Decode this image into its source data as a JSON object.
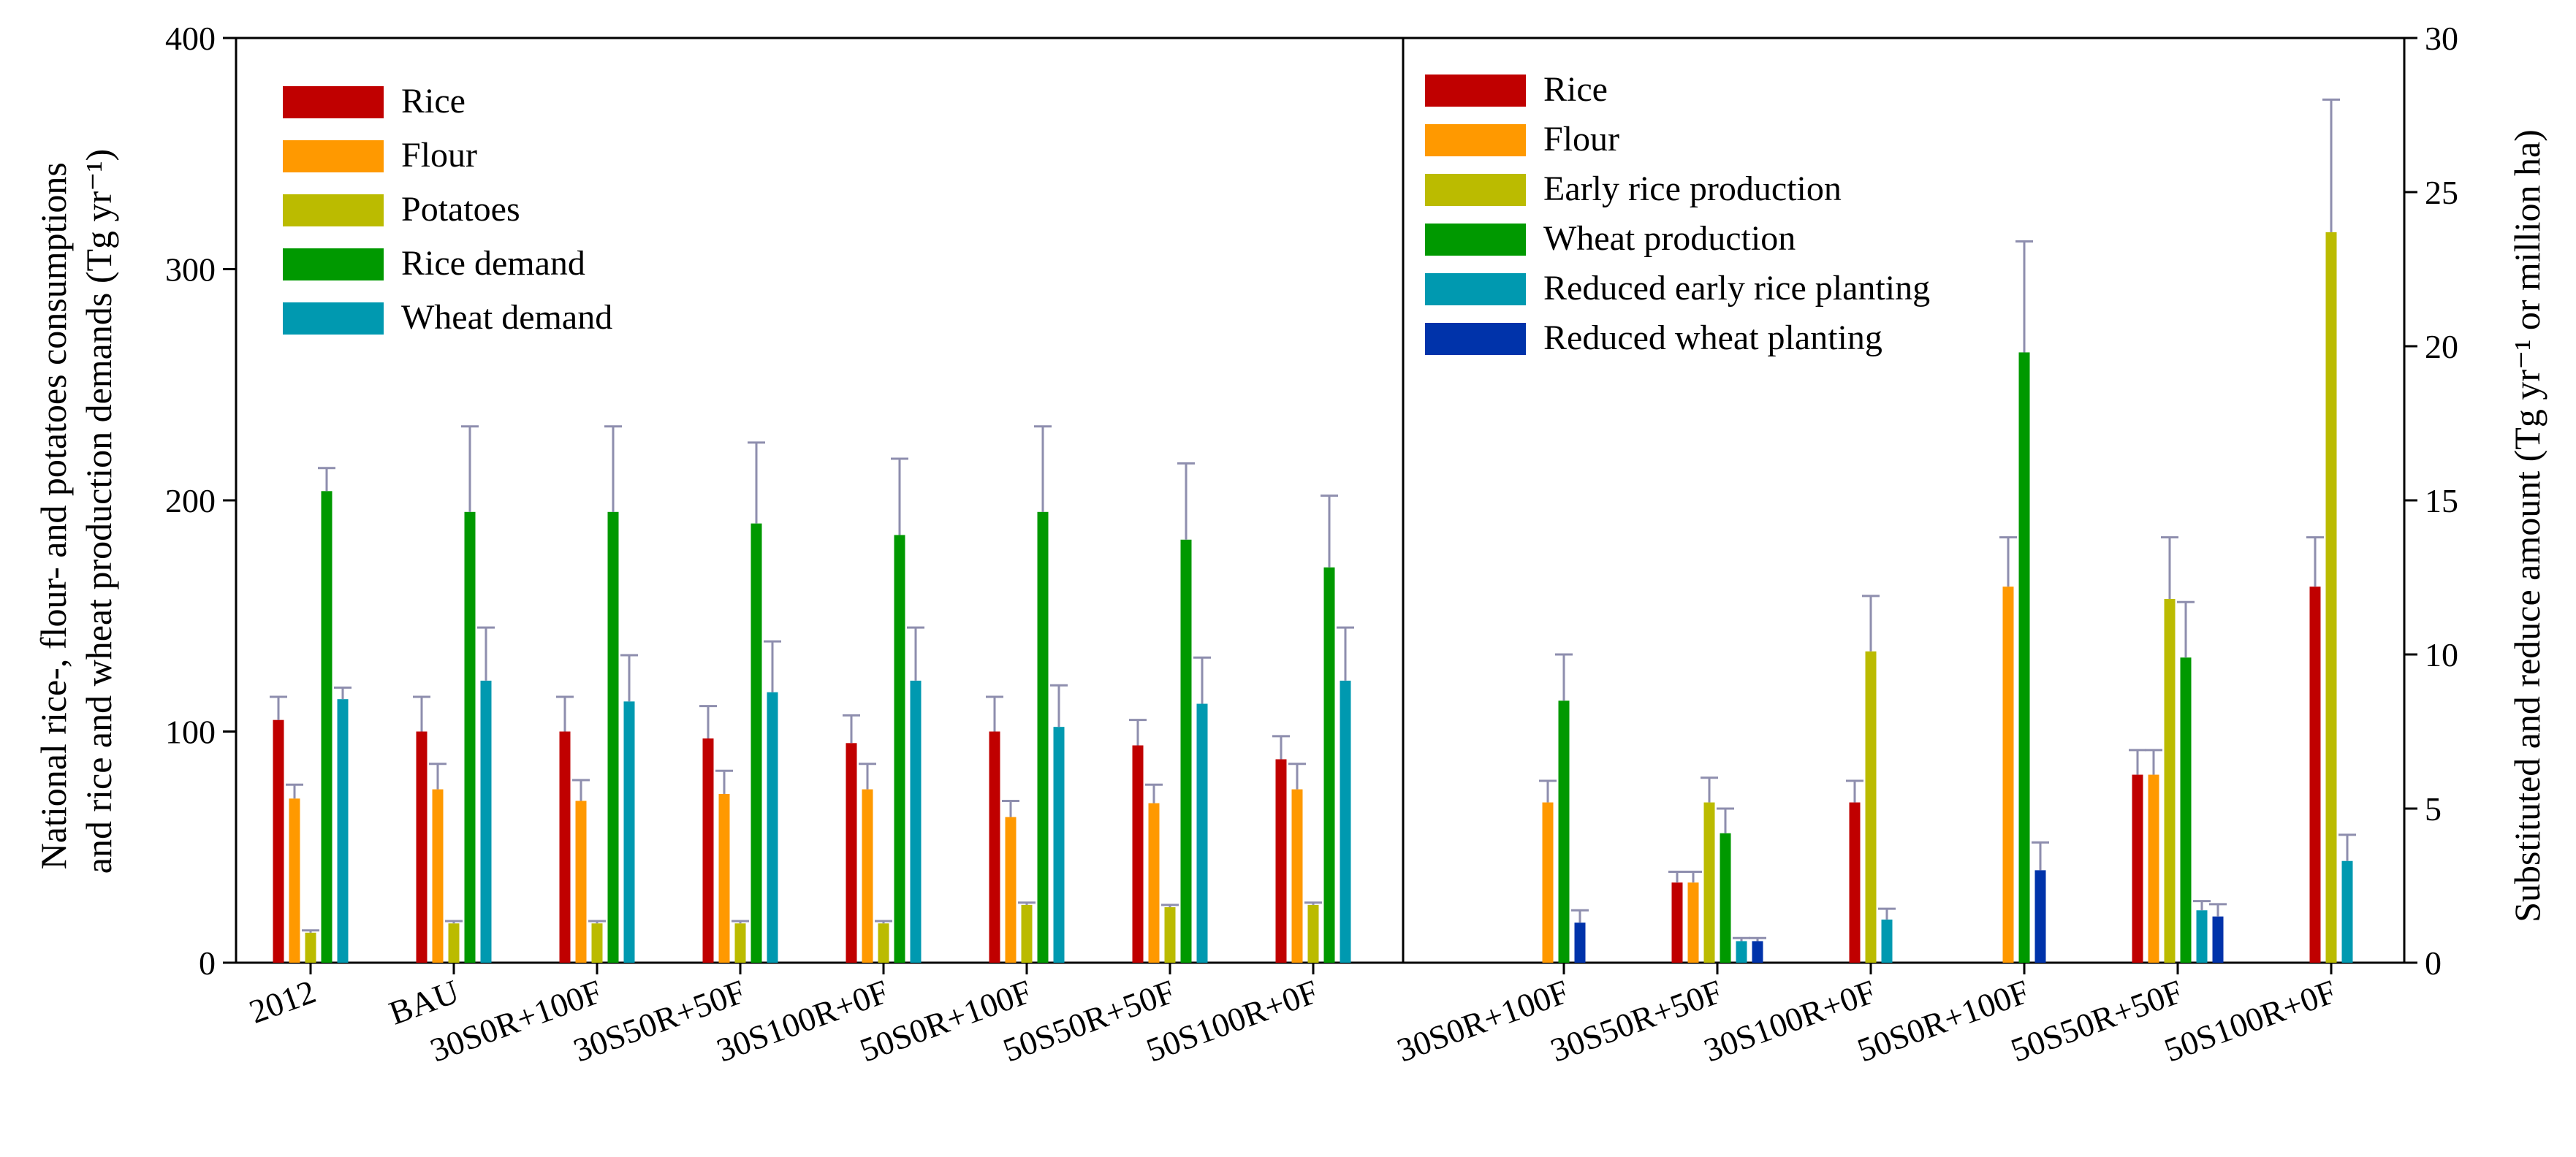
{
  "chart_data": [
    {
      "type": "bar",
      "panel": "left",
      "ylabel": "National rice-, flour- and potatoes consumptions and rice and wheat production demands (Tg yr⁻¹)",
      "ylabel_lines": [
        "National rice-, flour- and potatoes consumptions",
        "and rice and wheat production demands (Tg yr⁻¹)"
      ],
      "ylim": [
        0,
        400
      ],
      "yticks": [
        "0",
        "100",
        "200",
        "300",
        "400"
      ],
      "categories": [
        "2012",
        "BAU",
        "30S0R+100F",
        "30S50R+50F",
        "30S100R+0F",
        "50S0R+100F",
        "50S50R+50F",
        "50S100R+0F"
      ],
      "legend_position": "top-left",
      "series": [
        {
          "name": "Rice",
          "color": "#c00000",
          "values": [
            105,
            100,
            100,
            97,
            95,
            100,
            94,
            88
          ],
          "errors": [
            10,
            15,
            15,
            14,
            12,
            15,
            11,
            10
          ]
        },
        {
          "name": "Flour",
          "color": "#ff9900",
          "values": [
            71,
            75,
            70,
            73,
            75,
            63,
            69,
            75
          ],
          "errors": [
            6,
            11,
            9,
            10,
            11,
            7,
            8,
            11
          ]
        },
        {
          "name": "Potatoes",
          "color": "#bbbb00",
          "values": [
            13,
            17,
            17,
            17,
            17,
            25,
            24,
            25
          ],
          "errors": [
            1,
            1,
            1,
            1,
            1,
            1,
            1,
            1
          ]
        },
        {
          "name": "Rice demand",
          "color": "#009900",
          "values": [
            204,
            195,
            195,
            190,
            185,
            195,
            183,
            171
          ],
          "errors": [
            10,
            37,
            37,
            35,
            33,
            37,
            33,
            31
          ]
        },
        {
          "name": "Wheat demand",
          "color": "#0099b0",
          "values": [
            114,
            122,
            113,
            117,
            122,
            102,
            112,
            122
          ],
          "errors": [
            5,
            23,
            20,
            22,
            23,
            18,
            20,
            23
          ]
        }
      ]
    },
    {
      "type": "bar",
      "panel": "right",
      "ylabel": "Substituted and reduce amount (Tg yr⁻¹ or million ha)",
      "ylim": [
        0,
        30
      ],
      "yticks": [
        "0",
        "5",
        "10",
        "15",
        "20",
        "25",
        "30"
      ],
      "categories": [
        "30S0R+100F",
        "30S50R+50F",
        "30S100R+0F",
        "50S0R+100F",
        "50S50R+50F",
        "50S100R+0F"
      ],
      "legend_position": "top-left",
      "series": [
        {
          "name": "Rice",
          "color": "#c00000",
          "values": [
            null,
            2.6,
            5.2,
            null,
            6.1,
            12.2
          ],
          "errors": [
            null,
            0.35,
            0.7,
            null,
            0.8,
            1.6
          ]
        },
        {
          "name": "Flour",
          "color": "#ff9900",
          "values": [
            5.2,
            2.6,
            null,
            12.2,
            6.1,
            null
          ],
          "errors": [
            0.7,
            0.35,
            null,
            1.6,
            0.8,
            null
          ]
        },
        {
          "name": "Early rice production",
          "color": "#bbbb00",
          "values": [
            null,
            5.2,
            10.1,
            null,
            11.8,
            23.7
          ],
          "errors": [
            null,
            0.8,
            1.8,
            null,
            2.0,
            4.3
          ]
        },
        {
          "name": "Wheat production",
          "color": "#009900",
          "values": [
            8.5,
            4.2,
            null,
            19.8,
            9.9,
            null
          ],
          "errors": [
            1.5,
            0.8,
            null,
            3.6,
            1.8,
            null
          ]
        },
        {
          "name": "Reduced early rice planting",
          "color": "#0099b0",
          "values": [
            null,
            0.7,
            1.4,
            null,
            1.7,
            3.3
          ],
          "errors": [
            null,
            0.1,
            0.35,
            null,
            0.3,
            0.85
          ]
        },
        {
          "name": "Reduced wheat planting",
          "color": "#0033aa",
          "values": [
            1.3,
            0.7,
            null,
            3.0,
            1.5,
            null
          ],
          "errors": [
            0.4,
            0.1,
            null,
            0.9,
            0.4,
            null
          ]
        }
      ]
    }
  ]
}
